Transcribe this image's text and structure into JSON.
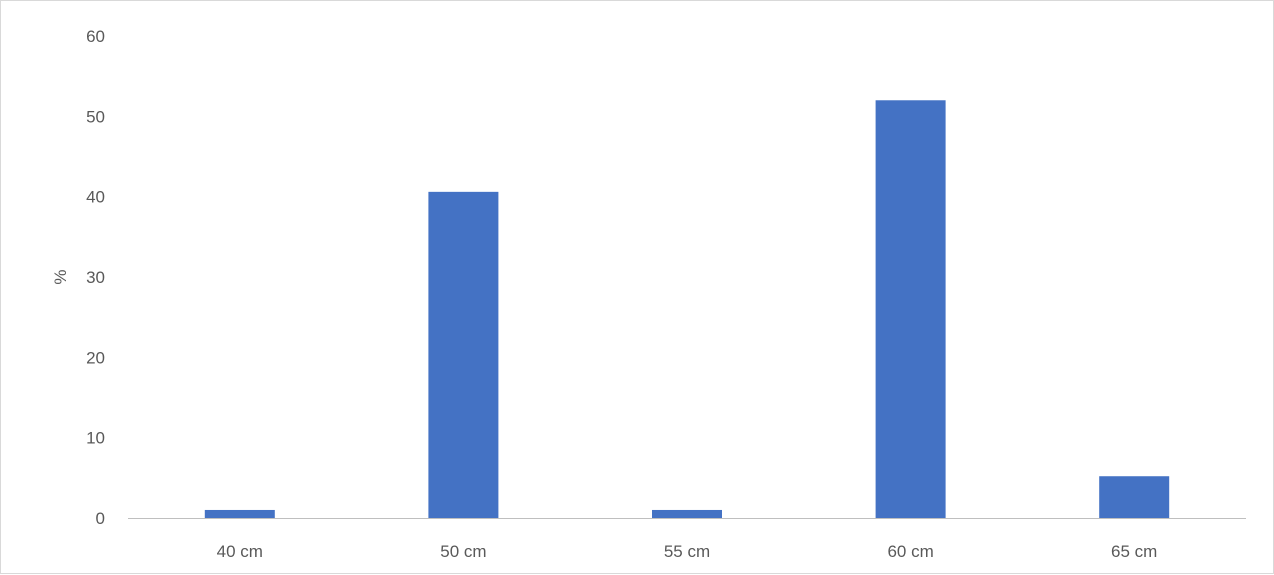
{
  "chart_data": {
    "type": "bar",
    "title": "",
    "xlabel": "",
    "ylabel": "%",
    "categories": [
      "40 cm",
      "50 cm",
      "55 cm",
      "60 cm",
      "65 cm"
    ],
    "values": [
      1,
      40.6,
      1,
      52,
      5.2
    ],
    "ylim": [
      0,
      60
    ],
    "yticks": [
      0,
      10,
      20,
      30,
      40,
      50,
      60
    ],
    "grid": false,
    "legend": "none",
    "bar_color": "#4472c4",
    "axis_color": "#bfbfbf"
  }
}
